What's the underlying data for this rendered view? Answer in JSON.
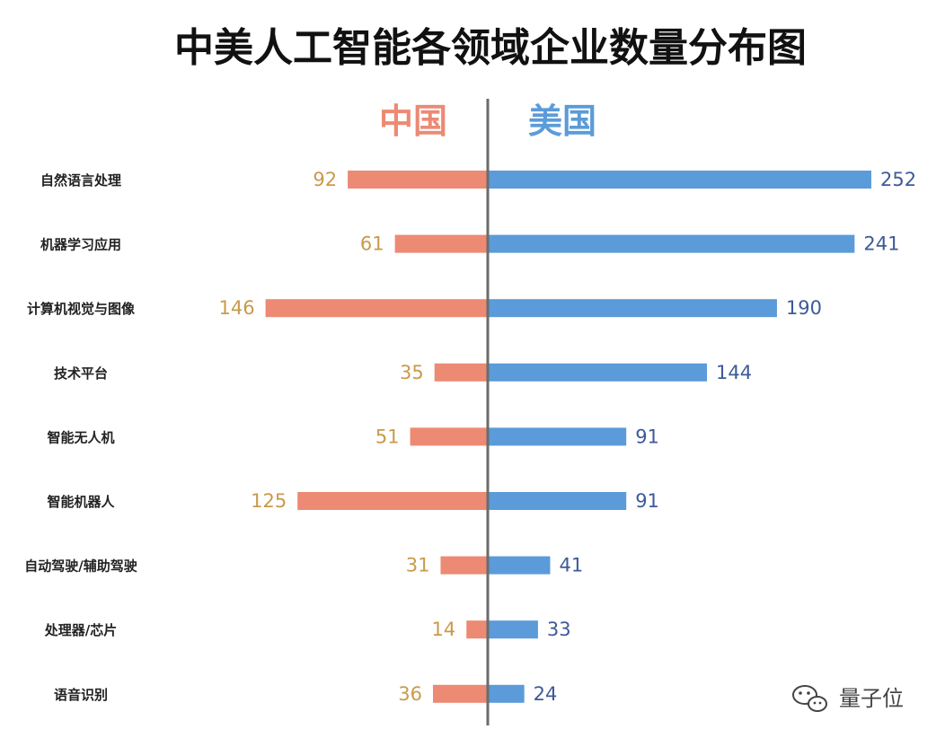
{
  "colors": {
    "china": "#ec8a74",
    "us": "#5b9bd9",
    "china_label": "#c99a4a",
    "us_label": "#3d5a99",
    "axis": "#6b6b6b"
  },
  "chart_data": {
    "type": "bar",
    "orientation": "horizontal-diverging",
    "title": "中美人工智能各领域企业数量分布图",
    "categories": [
      "自然语言处理",
      "机器学习应用",
      "计算机视觉与图像",
      "技术平台",
      "智能无人机",
      "智能机器人",
      "自动驾驶/辅助驾驶",
      "处理器/芯片",
      "语音识别"
    ],
    "series": [
      {
        "name": "中国",
        "direction": "left",
        "values": [
          92,
          61,
          146,
          35,
          51,
          125,
          31,
          14,
          36
        ]
      },
      {
        "name": "美国",
        "direction": "right",
        "values": [
          252,
          241,
          190,
          144,
          91,
          91,
          41,
          33,
          24
        ]
      }
    ],
    "xlim": [
      0,
      252
    ],
    "grid": false
  },
  "watermark": {
    "icon": "wechat-icon",
    "text": "量子位"
  }
}
